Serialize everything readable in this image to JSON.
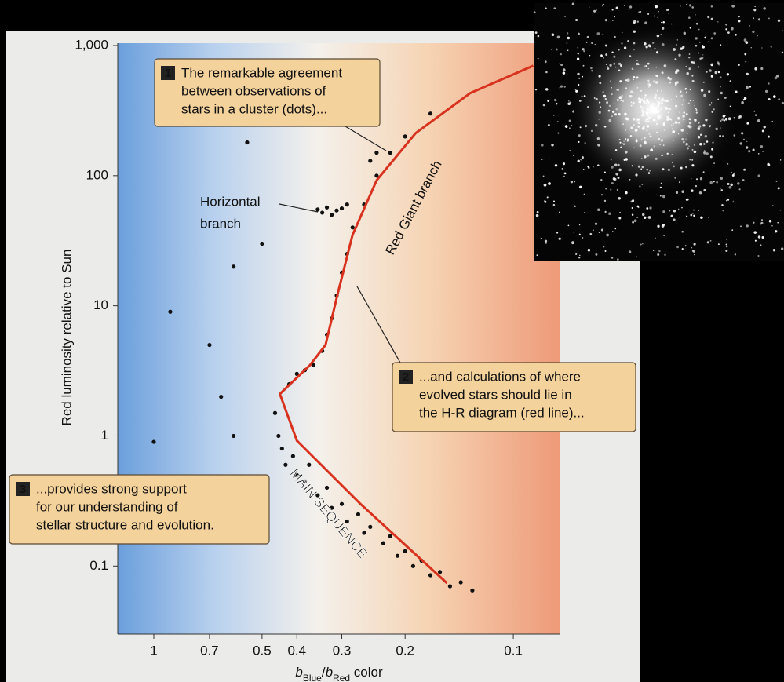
{
  "chart_data": {
    "type": "scatter",
    "y_label": "Red luminosity relative to Sun",
    "x_label_parts": [
      "b",
      "Blue",
      "/",
      "b",
      "Red",
      " color"
    ],
    "xlim": [
      1.26,
      0.074
    ],
    "ylim": [
      0.03,
      1000
    ],
    "xscale": "log",
    "yscale": "log",
    "xticks": [
      1,
      0.7,
      0.5,
      0.4,
      0.3,
      0.2,
      0.1
    ],
    "yticks": [
      {
        "value": 1000,
        "label": "1,000"
      },
      100,
      10,
      1,
      0.1
    ],
    "scatter": {
      "color": "#111111",
      "x": [
        0.46,
        0.45,
        0.44,
        0.43,
        0.41,
        0.4,
        0.38,
        0.37,
        0.35,
        0.33,
        0.32,
        0.3,
        0.29,
        0.27,
        0.26,
        0.25,
        0.23,
        0.22,
        0.21,
        0.2,
        0.19,
        0.18,
        0.17,
        0.16,
        0.15,
        0.14,
        0.13,
        0.42,
        0.4,
        0.38,
        0.36,
        0.34,
        0.33,
        0.32,
        0.31,
        0.3,
        0.29,
        0.28,
        0.26,
        0.24,
        0.22,
        0.2,
        0.17,
        0.35,
        0.34,
        0.33,
        0.32,
        0.31,
        0.3,
        0.29,
        0.55,
        0.6,
        0.7,
        0.65,
        0.6,
        1.0,
        0.9,
        0.5,
        0.25,
        0.24
      ],
      "y": [
        1.5,
        1.0,
        0.8,
        0.6,
        0.7,
        0.5,
        0.45,
        0.6,
        0.35,
        0.4,
        0.28,
        0.3,
        0.22,
        0.25,
        0.18,
        0.2,
        0.15,
        0.17,
        0.12,
        0.13,
        0.1,
        0.11,
        0.085,
        0.09,
        0.07,
        0.075,
        0.065,
        2.5,
        3.0,
        3.2,
        3.5,
        4.5,
        6,
        8,
        12,
        18,
        25,
        40,
        60,
        100,
        150,
        200,
        300,
        55,
        52,
        57,
        50,
        54,
        56,
        60,
        180,
        20,
        5,
        2,
        1,
        0.9,
        9,
        30,
        130,
        150
      ]
    },
    "model_line": {
      "color": "#d8321e",
      "x": [
        0.153,
        0.266,
        0.4,
        0.446,
        0.368,
        0.333,
        0.31,
        0.28,
        0.24,
        0.187,
        0.132,
        0.088
      ],
      "y": [
        0.074,
        0.3,
        0.92,
        2.1,
        3.5,
        5.0,
        11.5,
        35,
        92,
        212,
        430,
        700
      ]
    },
    "annotations": [
      {
        "number": "1",
        "lines": [
          "The remarkable agreement",
          "between observations of",
          "stars in a cluster (dots)..."
        ]
      },
      {
        "number": "2",
        "lines": [
          "...and calculations of where",
          "evolved stars should lie in",
          "the H-R diagram (red line)..."
        ]
      },
      {
        "number": "3",
        "lines": [
          "...provides strong support",
          "for our understanding of",
          "stellar structure and evolution."
        ]
      }
    ],
    "labels": {
      "horizontal_branch": [
        "Horizontal",
        "branch"
      ],
      "red_giant": "Red Giant branch",
      "main_sequence": "MAIN SEQUENCE"
    }
  }
}
